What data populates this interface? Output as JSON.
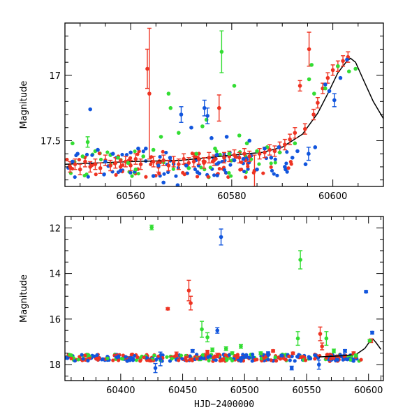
{
  "colors": {
    "red": "#ee3322",
    "green": "#33dd33",
    "blue": "#1155dd",
    "curve": "#000000"
  },
  "chart_data": [
    {
      "type": "scatter",
      "ylabel": "Magnitude",
      "xlabel": "",
      "xlim": [
        60547,
        60610
      ],
      "ylim": [
        17.85,
        16.6
      ],
      "y_inverted": true,
      "xticks": [
        60560,
        60580,
        60600
      ],
      "yticks": [
        17,
        17.5
      ],
      "grid": false,
      "series": [
        {
          "color": "red",
          "points": [
            [
              60548,
              17.7,
              0.04
            ],
            [
              60549,
              17.68,
              0.04
            ],
            [
              60550,
              17.72,
              0.04
            ],
            [
              60551,
              17.66,
              0.04
            ],
            [
              60552,
              17.7,
              0.04
            ],
            [
              60553,
              17.68,
              0.04
            ],
            [
              60554,
              17.71,
              0.04
            ],
            [
              60555,
              17.65,
              0.04
            ],
            [
              60556,
              17.69,
              0.04
            ],
            [
              60557,
              17.67,
              0.04
            ],
            [
              60558,
              17.7,
              0.04
            ],
            [
              60559,
              17.66,
              0.04
            ],
            [
              60560,
              17.69,
              0.04
            ],
            [
              60561,
              17.64,
              0.04
            ],
            [
              60562,
              17.68,
              0.04
            ],
            [
              60563.3,
              16.95,
              0.15
            ],
            [
              60563.7,
              17.14,
              0.5
            ],
            [
              60564.5,
              17.66,
              0.04
            ],
            [
              60565.5,
              17.7,
              0.04
            ],
            [
              60566.5,
              17.65,
              0.04
            ],
            [
              60567.5,
              17.69,
              0.04
            ],
            [
              60568.5,
              17.66,
              0.04
            ],
            [
              60569.5,
              17.68,
              0.04
            ],
            [
              60570.5,
              17.64,
              0.04
            ],
            [
              60571.5,
              17.67,
              0.04
            ],
            [
              60572.5,
              17.66,
              0.04
            ],
            [
              60573.5,
              17.64,
              0.04
            ],
            [
              60574.5,
              17.67,
              0.04
            ],
            [
              60575.5,
              17.63,
              0.04
            ],
            [
              60576.5,
              17.65,
              0.04
            ],
            [
              60577.5,
              17.25,
              0.1
            ],
            [
              60578.5,
              17.63,
              0.04
            ],
            [
              60579.5,
              17.62,
              0.04
            ],
            [
              60580.5,
              17.61,
              0.04
            ],
            [
              60581.5,
              17.63,
              0.04
            ],
            [
              60582.5,
              17.6,
              0.04
            ],
            [
              60583.5,
              17.62,
              0.04
            ],
            [
              60584.5,
              17.73,
              0.12
            ],
            [
              60585.5,
              17.6,
              0.04
            ],
            [
              60586.5,
              17.59,
              0.04
            ],
            [
              60587.5,
              17.57,
              0.04
            ],
            [
              60588.5,
              17.58,
              0.04
            ],
            [
              60589.5,
              17.55,
              0.04
            ],
            [
              60590.5,
              17.53,
              0.04
            ],
            [
              60591.5,
              17.49,
              0.04
            ],
            [
              60592.5,
              17.44,
              0.04
            ],
            [
              60593.5,
              17.08,
              0.04
            ],
            [
              60594.5,
              17.41,
              0.04
            ],
            [
              60595.3,
              16.8,
              0.13
            ],
            [
              60596.2,
              17.3,
              0.04
            ],
            [
              60597,
              17.21,
              0.04
            ],
            [
              60598,
              17.1,
              0.04
            ],
            [
              60599,
              17.02,
              0.04
            ],
            [
              60600,
              16.96,
              0.04
            ],
            [
              60601,
              16.93,
              0.04
            ],
            [
              60602,
              16.89,
              0.04
            ],
            [
              60603,
              16.86,
              0.04
            ]
          ]
        },
        {
          "color": "green",
          "points": [
            [
              60548.5,
              17.52,
              0.03
            ],
            [
              60550.5,
              17.62,
              0.03
            ],
            [
              60551.5,
              17.51,
              0.04
            ],
            [
              60553,
              17.58,
              0.03
            ],
            [
              60556,
              17.61,
              0.03
            ],
            [
              60557.5,
              17.63,
              0.03
            ],
            [
              60559.5,
              17.67,
              0.03
            ],
            [
              60561,
              17.72,
              0.03
            ],
            [
              60562.5,
              17.62,
              0.03
            ],
            [
              60564.5,
              17.57,
              0.03
            ],
            [
              60566,
              17.47,
              0.03
            ],
            [
              60567.5,
              17.14,
              0.03
            ],
            [
              60567.9,
              17.25,
              0.03
            ],
            [
              60569.5,
              17.44,
              0.03
            ],
            [
              60571.5,
              17.71,
              0.03
            ],
            [
              60573,
              17.6,
              0.03
            ],
            [
              60574.2,
              17.39,
              0.03
            ],
            [
              60575,
              17.34,
              0.03
            ],
            [
              60576.7,
              17.56,
              0.03
            ],
            [
              60578,
              16.82,
              0.16
            ],
            [
              60579.5,
              17.6,
              0.03
            ],
            [
              60580.5,
              17.08,
              0.03
            ],
            [
              60581.5,
              17.46,
              0.03
            ],
            [
              60583,
              17.52,
              0.03
            ],
            [
              60585,
              17.58,
              0.03
            ],
            [
              60587,
              17.55,
              0.03
            ],
            [
              60589.5,
              17.59,
              0.03
            ],
            [
              60592.5,
              17.52,
              0.03
            ],
            [
              60595.3,
              17.03,
              0.03
            ],
            [
              60595.8,
              16.92,
              0.03
            ],
            [
              60596.3,
              17.14,
              0.03
            ],
            [
              60598.5,
              17.1,
              0.03
            ],
            [
              60601,
              16.93,
              0.03
            ],
            [
              60603.2,
              16.97,
              0.03
            ],
            [
              60604.5,
              16.95,
              0.03
            ]
          ]
        },
        {
          "color": "blue",
          "points": [
            [
              60548.5,
              17.66,
              0.03
            ],
            [
              60549.5,
              17.6,
              0.03
            ],
            [
              60552,
              17.26,
              0.03
            ],
            [
              60553.5,
              17.57,
              0.03
            ],
            [
              60555,
              17.66,
              0.03
            ],
            [
              60556.5,
              17.6,
              0.03
            ],
            [
              60558,
              17.73,
              0.03
            ],
            [
              60560,
              17.59,
              0.03
            ],
            [
              60561.5,
              17.56,
              0.03
            ],
            [
              60563,
              17.56,
              0.03
            ],
            [
              60564.5,
              17.77,
              0.03
            ],
            [
              60565.5,
              17.69,
              0.03
            ],
            [
              60566.5,
              17.82,
              0.03
            ],
            [
              60567.8,
              17.63,
              0.03
            ],
            [
              60569.3,
              17.84,
              0.03
            ],
            [
              60570,
              17.3,
              0.06
            ],
            [
              60571,
              17.69,
              0.03
            ],
            [
              60572,
              17.4,
              0.03
            ],
            [
              60573.2,
              17.74,
              0.03
            ],
            [
              60574.6,
              17.25,
              0.06
            ],
            [
              60575.2,
              17.31,
              0.06
            ],
            [
              60576,
              17.48,
              0.03
            ],
            [
              60577,
              17.61,
              0.03
            ],
            [
              60579,
              17.47,
              0.03
            ],
            [
              60580.5,
              17.65,
              0.03
            ],
            [
              60582.3,
              17.64,
              0.03
            ],
            [
              60583.5,
              17.5,
              0.03
            ],
            [
              60585,
              17.72,
              0.03
            ],
            [
              60586.5,
              17.56,
              0.03
            ],
            [
              60587.8,
              17.63,
              0.03
            ],
            [
              60589.3,
              17.55,
              0.03
            ],
            [
              60590.5,
              17.7,
              0.03
            ],
            [
              60592,
              17.63,
              0.03
            ],
            [
              60593,
              17.58,
              0.03
            ],
            [
              60594.6,
              17.68,
              0.03
            ],
            [
              60595.2,
              17.6,
              0.05
            ],
            [
              60596.5,
              17.55,
              0.03
            ],
            [
              60598.5,
              17.07,
              0.03
            ],
            [
              60599.3,
              17.12,
              0.03
            ],
            [
              60600.3,
              17.19,
              0.05
            ],
            [
              60601.5,
              17.02,
              0.03
            ],
            [
              60602.8,
              16.88,
              0.03
            ]
          ]
        }
      ],
      "curve": [
        [
          60547,
          17.68
        ],
        [
          60560,
          17.66
        ],
        [
          60570,
          17.65
        ],
        [
          60580,
          17.61
        ],
        [
          60586,
          17.59
        ],
        [
          60590,
          17.55
        ],
        [
          60594,
          17.45
        ],
        [
          60597,
          17.29
        ],
        [
          60599,
          17.14
        ],
        [
          60601,
          16.98
        ],
        [
          60602.8,
          16.89
        ],
        [
          60603.5,
          16.87
        ],
        [
          60604.5,
          16.9
        ],
        [
          60606,
          17.03
        ],
        [
          60608,
          17.2
        ],
        [
          60610,
          17.33
        ]
      ]
    },
    {
      "type": "scatter",
      "ylabel": "Magnitude",
      "xlabel": "HJD−2400000",
      "xlim": [
        60355,
        60612
      ],
      "ylim": [
        18.7,
        11.5
      ],
      "y_inverted": true,
      "xticks": [
        60400,
        60450,
        60500,
        60550,
        60600
      ],
      "yticks": [
        12,
        14,
        16,
        18
      ],
      "grid": false,
      "series": [
        {
          "color": "red",
          "points": [
            [
              60438,
              15.55,
              0.05
            ],
            [
              60455,
              14.75,
              0.45
            ],
            [
              60456.5,
              15.3,
              0.3
            ],
            [
              60445,
              17.55,
              0.1
            ],
            [
              60470,
              17.45,
              0.08
            ],
            [
              60478,
              17.6,
              0.1
            ],
            [
              60523,
              17.4,
              0.05
            ],
            [
              60539,
              17.5,
              0.05
            ],
            [
              60561,
              16.65,
              0.3
            ],
            [
              60562.5,
              17.2,
              0.15
            ],
            [
              60588,
              17.5,
              0.06
            ],
            [
              60602,
              16.95,
              0.08
            ]
          ]
        },
        {
          "color": "green",
          "points": [
            [
              60425,
              11.98,
              0.1
            ],
            [
              60465.5,
              16.45,
              0.35
            ],
            [
              60470,
              16.8,
              0.2
            ],
            [
              60474,
              17.35,
              0.08
            ],
            [
              60485,
              17.3,
              0.08
            ],
            [
              60490,
              17.5,
              0.06
            ],
            [
              60497,
              17.2,
              0.08
            ],
            [
              60513,
              17.5,
              0.06
            ],
            [
              60543,
              16.85,
              0.3
            ],
            [
              60545,
              13.4,
              0.4
            ],
            [
              60566,
              16.85,
              0.3
            ],
            [
              60572,
              17.4,
              0.08
            ],
            [
              60590,
              17.6,
              0.06
            ],
            [
              60601,
              16.95,
              0.05
            ]
          ]
        },
        {
          "color": "blue",
          "points": [
            [
              60428,
              18.15,
              0.2
            ],
            [
              60432,
              17.75,
              0.3
            ],
            [
              60458,
              17.4,
              0.06
            ],
            [
              60478,
              16.5,
              0.12
            ],
            [
              60481,
              12.4,
              0.35
            ],
            [
              60519,
              17.5,
              0.06
            ],
            [
              60530,
              17.6,
              0.05
            ],
            [
              60538,
              18.15,
              0.08
            ],
            [
              60560,
              18.0,
              0.2
            ],
            [
              60581,
              17.4,
              0.06
            ],
            [
              60598,
              14.8,
              0.05
            ],
            [
              60603,
              16.6,
              0.06
            ]
          ]
        }
      ],
      "curve": [
        [
          60560,
          17.66
        ],
        [
          60580,
          17.61
        ],
        [
          60590,
          17.55
        ],
        [
          60597,
          17.29
        ],
        [
          60601,
          16.98
        ],
        [
          60603.5,
          16.87
        ],
        [
          60606,
          17.03
        ],
        [
          60610,
          17.33
        ]
      ]
    }
  ]
}
